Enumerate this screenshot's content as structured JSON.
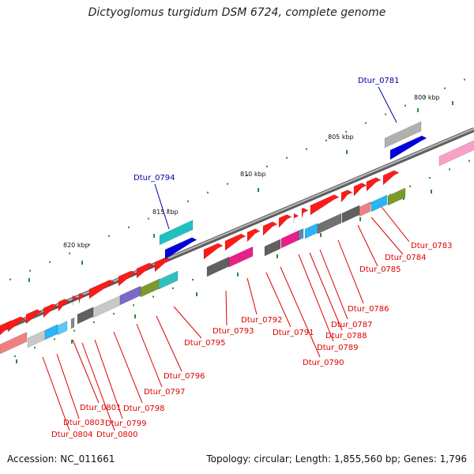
{
  "title": "Dictyoglomus turgidum DSM 6724, complete genome",
  "accession": "Accession: NC_011661",
  "summary": "Topology: circular; Length: 1,855,560 bp; Genes: 1,796",
  "colors": {
    "backbone": "#7d7d7d",
    "tick": "#2e8b2e",
    "label_red": "#dd0000",
    "label_blue": "#0000aa"
  },
  "kbp_labels": [
    "800 kbp",
    "805 kbp",
    "810 kbp",
    "815 kbp",
    "820 kbp"
  ],
  "gene_labels": [
    {
      "text": "Dtur_0781",
      "color": "blue"
    },
    {
      "text": "Dtur_0783",
      "color": "red"
    },
    {
      "text": "Dtur_0784",
      "color": "red"
    },
    {
      "text": "Dtur_0785",
      "color": "red"
    },
    {
      "text": "Dtur_0786",
      "color": "red"
    },
    {
      "text": "Dtur_0787",
      "color": "red"
    },
    {
      "text": "Dtur_0788",
      "color": "red"
    },
    {
      "text": "Dtur_0789",
      "color": "red"
    },
    {
      "text": "Dtur_0790",
      "color": "red"
    },
    {
      "text": "Dtur_0791",
      "color": "red"
    },
    {
      "text": "Dtur_0792",
      "color": "red"
    },
    {
      "text": "Dtur_0793",
      "color": "red"
    },
    {
      "text": "Dtur_0794",
      "color": "blue"
    },
    {
      "text": "Dtur_0795",
      "color": "red"
    },
    {
      "text": "Dtur_0796",
      "color": "red"
    },
    {
      "text": "Dtur_0797",
      "color": "red"
    },
    {
      "text": "Dtur_0798",
      "color": "red"
    },
    {
      "text": "Dtur_0799",
      "color": "red"
    },
    {
      "text": "Dtur_0800",
      "color": "red"
    },
    {
      "text": "Dtur_0801",
      "color": "red"
    },
    {
      "text": "Dtur_0803",
      "color": "red"
    },
    {
      "text": "Dtur_0804",
      "color": "red"
    }
  ]
}
